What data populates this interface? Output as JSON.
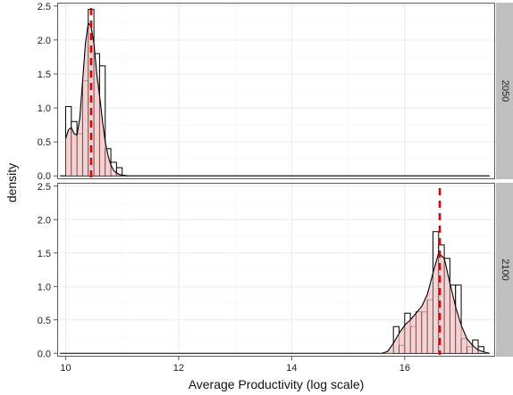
{
  "chart_data": {
    "type": "histogram_density_facets",
    "xlabel": "Average Productivity (log scale)",
    "ylabel": "density",
    "x_ticks": [
      10,
      12,
      14,
      16
    ],
    "y_ticks": [
      0.0,
      0.5,
      1.0,
      1.5,
      2.0,
      2.5
    ],
    "y_tick_labels": [
      "0.0",
      "0.5",
      "1.0",
      "1.5",
      "2.0",
      "2.5"
    ],
    "xlim": [
      9.85,
      17.6
    ],
    "ylim": [
      -0.05,
      2.55
    ],
    "grid": true,
    "style": {
      "panel_border": "#333333",
      "grid_color": "#ebebeb",
      "strip_fill": "#bfbfbf",
      "bar_outline": "#000000",
      "density_fill": "#f4c2c2",
      "density_line": "#000000",
      "vline_color": "#e00000"
    },
    "facets": [
      {
        "label": "2050",
        "line_range": [
          9.9,
          17.5
        ],
        "bins": [
          {
            "x": [
              10.0,
              10.1
            ],
            "y": 1.02
          },
          {
            "x": [
              10.1,
              10.2
            ],
            "y": 0.8
          },
          {
            "x": [
              10.2,
              10.3
            ],
            "y": 0.62
          },
          {
            "x": [
              10.3,
              10.4
            ],
            "y": 1.4
          },
          {
            "x": [
              10.4,
              10.5
            ],
            "y": 2.45
          },
          {
            "x": [
              10.5,
              10.6
            ],
            "y": 1.8
          },
          {
            "x": [
              10.6,
              10.7
            ],
            "y": 1.62
          },
          {
            "x": [
              10.7,
              10.8
            ],
            "y": 0.4
          },
          {
            "x": [
              10.8,
              10.9
            ],
            "y": 0.2
          },
          {
            "x": [
              10.9,
              11.0
            ],
            "y": 0.12
          }
        ],
        "density": {
          "x": [
            10.0,
            10.05,
            10.1,
            10.15,
            10.2,
            10.25,
            10.3,
            10.35,
            10.4,
            10.45,
            10.5,
            10.55,
            10.6,
            10.65,
            10.7,
            10.75,
            10.8,
            10.85,
            10.9,
            10.95,
            11.0,
            11.1
          ],
          "y": [
            0.55,
            0.68,
            0.71,
            0.62,
            0.6,
            0.85,
            1.4,
            1.95,
            2.25,
            2.2,
            1.95,
            1.5,
            1.18,
            0.82,
            0.5,
            0.3,
            0.16,
            0.08,
            0.04,
            0.02,
            0.01,
            0.0
          ]
        },
        "vline": 10.45
      },
      {
        "label": "2100",
        "line_range": [
          9.9,
          17.5
        ],
        "bins": [
          {
            "x": [
              15.8,
              15.9
            ],
            "y": 0.4
          },
          {
            "x": [
              15.9,
              16.0
            ],
            "y": 0.12
          },
          {
            "x": [
              16.0,
              16.1
            ],
            "y": 0.6
          },
          {
            "x": [
              16.1,
              16.2
            ],
            "y": 0.4
          },
          {
            "x": [
              16.2,
              16.3
            ],
            "y": 0.62
          },
          {
            "x": [
              16.3,
              16.4
            ],
            "y": 0.62
          },
          {
            "x": [
              16.4,
              16.5
            ],
            "y": 0.8
          },
          {
            "x": [
              16.5,
              16.6
            ],
            "y": 1.82
          },
          {
            "x": [
              16.6,
              16.7
            ],
            "y": 1.62
          },
          {
            "x": [
              16.7,
              16.8
            ],
            "y": 1.42
          },
          {
            "x": [
              16.8,
              16.9
            ],
            "y": 1.02
          },
          {
            "x": [
              16.9,
              17.0
            ],
            "y": 1.02
          },
          {
            "x": [
              17.0,
              17.1
            ],
            "y": 0.22
          },
          {
            "x": [
              17.1,
              17.2
            ],
            "y": 0.1
          },
          {
            "x": [
              17.2,
              17.3
            ],
            "y": 0.2
          },
          {
            "x": [
              17.3,
              17.4
            ],
            "y": 0.1
          }
        ],
        "density": {
          "x": [
            15.6,
            15.7,
            15.8,
            15.9,
            16.0,
            16.1,
            16.2,
            16.3,
            16.4,
            16.5,
            16.6,
            16.7,
            16.8,
            16.9,
            17.0,
            17.1,
            17.2,
            17.3,
            17.4,
            17.5
          ],
          "y": [
            0.0,
            0.03,
            0.15,
            0.3,
            0.42,
            0.5,
            0.6,
            0.7,
            0.88,
            1.2,
            1.5,
            1.42,
            1.05,
            0.7,
            0.42,
            0.22,
            0.12,
            0.05,
            0.02,
            0.0
          ]
        },
        "vline": 16.62
      }
    ]
  }
}
